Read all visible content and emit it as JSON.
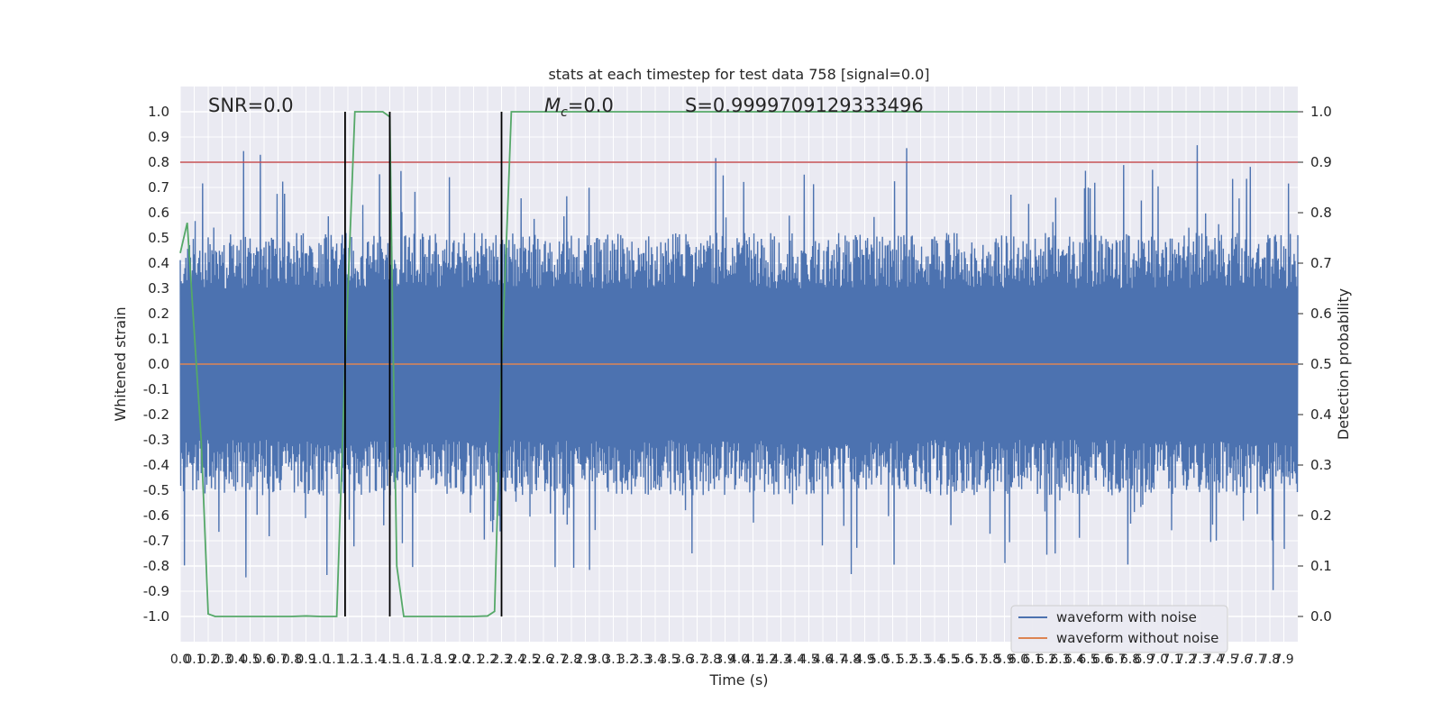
{
  "chart_data": {
    "type": "line",
    "title": "stats at each timestep for test data 758 [signal=0.0]",
    "xlabel": "Time (s)",
    "ylabel_left": "Whitened strain",
    "ylabel_right": "Detection probability",
    "xlim": [
      0.0,
      8.0
    ],
    "ylim_left": [
      -1.1,
      1.1
    ],
    "ylim_right": [
      -0.05,
      1.05
    ],
    "grid": true,
    "legend_placement": "lower-right",
    "x_ticks": [
      "0.0",
      "0.1",
      "0.2",
      "0.3",
      "0.4",
      "0.5",
      "0.6",
      "0.7",
      "0.8",
      "0.9",
      "1.0",
      "1.1",
      "1.2",
      "1.3",
      "1.4",
      "1.5",
      "1.6",
      "1.7",
      "1.8",
      "1.9",
      "2.0",
      "2.1",
      "2.2",
      "2.3",
      "2.4",
      "2.5",
      "2.6",
      "2.7",
      "2.8",
      "2.9",
      "3.0",
      "3.1",
      "3.2",
      "3.3",
      "3.4",
      "3.5",
      "3.6",
      "3.7",
      "3.8",
      "3.9",
      "4.0",
      "4.1",
      "4.2",
      "4.3",
      "4.4",
      "4.5",
      "4.6",
      "4.7",
      "4.8",
      "4.9",
      "5.0",
      "5.1",
      "5.2",
      "5.3",
      "5.4",
      "5.5",
      "5.6",
      "5.7",
      "5.8",
      "5.9",
      "6.0",
      "6.1",
      "6.2",
      "6.3",
      "6.4",
      "6.5",
      "6.6",
      "6.7",
      "6.8",
      "6.9",
      "7.0",
      "7.1",
      "7.2",
      "7.3",
      "7.4",
      "7.5",
      "7.6",
      "7.7",
      "7.8",
      "7.9"
    ],
    "y_ticks_left": [
      "1.0",
      "0.9",
      "0.8",
      "0.7",
      "0.6",
      "0.5",
      "0.4",
      "0.3",
      "0.2",
      "0.1",
      "0.0",
      "-0.1",
      "-0.2",
      "-0.3",
      "-0.4",
      "-0.5",
      "-0.6",
      "-0.7",
      "-0.8",
      "-0.9",
      "-1.0"
    ],
    "y_ticks_right": [
      "1.0",
      "0.9",
      "0.8",
      "0.7",
      "0.6",
      "0.5",
      "0.4",
      "0.3",
      "0.2",
      "0.1",
      "0.0"
    ],
    "annotations": {
      "snr": "SNR=0.0",
      "mc_symbol": "M",
      "mc_sub": "c",
      "mc_value": "=0.0",
      "score": "S=0.9999709129333496"
    },
    "series": [
      {
        "name": "waveform with noise",
        "color": "#4c72b0",
        "axis": "left",
        "description_amplitude": "noise band roughly -0.6 to 0.6 with spikes to about 1.0"
      },
      {
        "name": "waveform without noise",
        "color": "#dd8452",
        "axis": "left",
        "x": [
          0.0,
          8.0
        ],
        "y": [
          0.0,
          0.0
        ]
      },
      {
        "name": "",
        "color": "#55a868",
        "axis": "right",
        "x": [
          0.0,
          0.05,
          0.15,
          0.2,
          0.25,
          0.8,
          0.9,
          1.0,
          1.1,
          1.12,
          1.18,
          1.25,
          1.3,
          1.45,
          1.5,
          1.52,
          1.55,
          1.6,
          1.65,
          1.8,
          2.0,
          2.1,
          2.2,
          2.25,
          2.3,
          2.35,
          2.37,
          2.4,
          2.45,
          2.5,
          2.7,
          3.0,
          4.0,
          5.0,
          6.0,
          7.0,
          8.0
        ],
        "y": [
          0.72,
          0.78,
          0.35,
          0.005,
          0.0,
          0.0,
          0.001,
          0.0,
          0.0,
          0.0,
          0.5,
          1.0,
          1.0,
          1.0,
          0.99,
          0.6,
          0.1,
          0.0,
          0.0,
          0.0,
          0.0,
          0.0,
          0.001,
          0.01,
          0.5,
          0.85,
          1.0,
          1.0,
          1.0,
          1.0,
          1.0,
          1.0,
          1.0,
          1.0,
          1.0,
          1.0,
          1.0
        ]
      }
    ],
    "threshold": {
      "color": "#c44e52",
      "axis": "right",
      "y": 0.9
    },
    "markers": {
      "color": "#000000",
      "axis": "right",
      "x": [
        1.18,
        1.5,
        2.3
      ],
      "y_range": [
        0.0,
        1.0
      ]
    }
  }
}
